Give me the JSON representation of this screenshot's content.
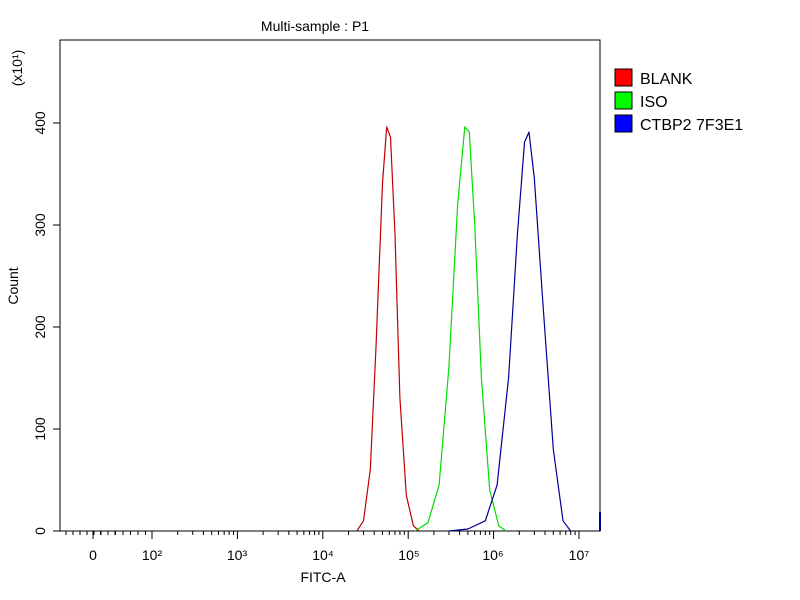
{
  "chart_data": {
    "type": "line",
    "title": "Multi-sample : P1",
    "xlabel": "FITC-A",
    "ylabel": "Count",
    "y_multiplier_label": "(x10¹)",
    "x_scale": "log",
    "ylim": [
      0,
      480
    ],
    "y_ticks": [
      "0",
      "100",
      "200",
      "300",
      "400"
    ],
    "x_ticks": [
      "0",
      "10²",
      "10³",
      "10⁴",
      "10⁵",
      "10⁶",
      "10⁷"
    ],
    "grid": false,
    "legend_position": "top-right",
    "series": [
      {
        "name": "BLANK",
        "color": "#c00000",
        "x": [
          25000,
          30000,
          36000,
          42000,
          50000,
          56000,
          62000,
          70000,
          80000,
          95000,
          115000,
          135000
        ],
        "y": [
          0,
          10,
          60,
          180,
          340,
          395,
          385,
          290,
          130,
          35,
          5,
          0
        ]
      },
      {
        "name": "ISO",
        "color": "#00dd00",
        "x": [
          120000,
          170000,
          230000,
          300000,
          380000,
          460000,
          520000,
          600000,
          720000,
          900000,
          1150000,
          1400000
        ],
        "y": [
          0,
          8,
          45,
          160,
          320,
          395,
          390,
          300,
          150,
          40,
          5,
          0
        ]
      },
      {
        "name": "CTBP2 7F3E1",
        "color": "#000099",
        "x": [
          300000,
          500000,
          800000,
          1100000,
          1500000,
          1900000,
          2300000,
          2600000,
          3000000,
          3800000,
          5000000,
          6500000,
          8000000
        ],
        "y": [
          0,
          2,
          10,
          45,
          150,
          290,
          380,
          390,
          345,
          220,
          80,
          10,
          0
        ]
      }
    ]
  }
}
